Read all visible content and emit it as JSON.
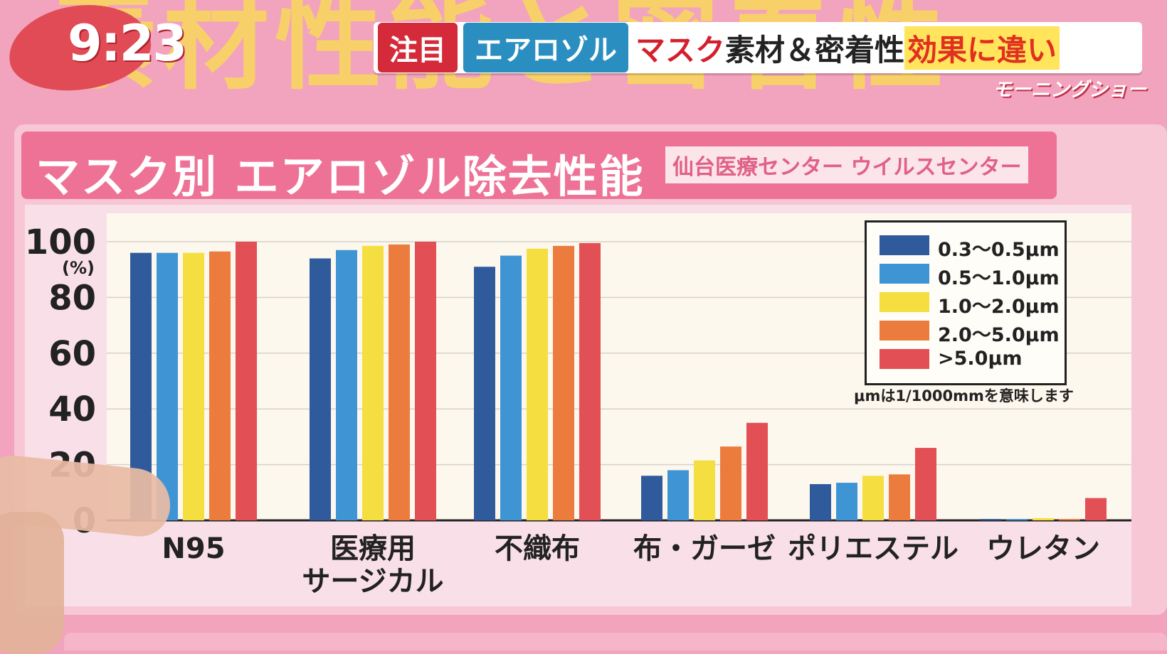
{
  "background_title": "素材性能と密着性",
  "clock": "9:23",
  "headline": {
    "tag1": "注目",
    "tag2": "エアロゾル",
    "red_text": "マスク",
    "black_text": "素材＆密着性",
    "highlight_text": "効果に違い"
  },
  "show_logo": "モーニングショー",
  "colors": {
    "s1": "#2f5a9c",
    "s2": "#3f95d3",
    "s3": "#f5de3f",
    "s4": "#ec7c3e",
    "s5": "#e24f54"
  },
  "chart_data": {
    "type": "bar",
    "title": "マスク別 エアロゾル除去性能",
    "source": "仙台医療センター ウイルスセンター",
    "ylabel": "(%)",
    "ylim": [
      0,
      100
    ],
    "yticks": [
      "100",
      "80",
      "60",
      "40",
      "20",
      "0"
    ],
    "categories": [
      [
        "N95"
      ],
      [
        "医療用",
        "サージカル"
      ],
      [
        "不織布"
      ],
      [
        "布・ガーゼ"
      ],
      [
        "ポリエステル"
      ],
      [
        "ウレタン"
      ]
    ],
    "series": [
      {
        "name": "0.3〜0.5μm",
        "values": [
          96,
          94,
          91,
          16,
          13,
          0.5
        ]
      },
      {
        "name": "0.5〜1.0μm",
        "values": [
          96,
          97,
          95,
          18,
          13.5,
          0.5
        ]
      },
      {
        "name": "1.0〜2.0μm",
        "values": [
          96,
          98.5,
          97.5,
          21.5,
          16,
          0.8
        ]
      },
      {
        "name": "2.0〜5.0μm",
        "values": [
          96.5,
          99,
          98.5,
          26.5,
          16.5,
          0.5
        ]
      },
      {
        "name": ">5.0μm",
        "values": [
          100,
          100,
          99.5,
          35,
          26,
          8
        ]
      }
    ],
    "legend_position": "top-right",
    "note": "μmは1/1000mmを意味します",
    "grid": true
  }
}
